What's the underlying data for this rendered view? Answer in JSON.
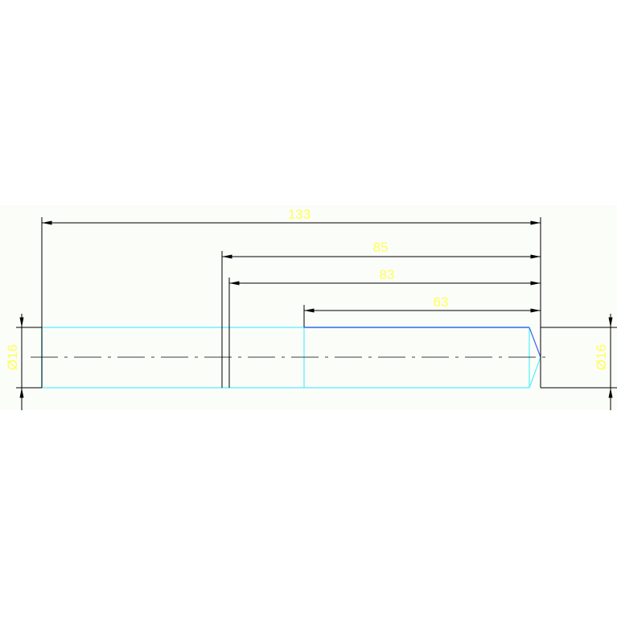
{
  "drawing": {
    "colors": {
      "background": "#fbfdf9",
      "dimension": "#000000",
      "text": "#ffff55",
      "outline": "#55eeff",
      "edge": "#3366ee"
    },
    "dimensions": {
      "overall_length": "133",
      "length_85": "85",
      "length_83": "83",
      "length_63": "63",
      "diameter_left": "Ø16",
      "diameter_right": "Ø16"
    }
  }
}
